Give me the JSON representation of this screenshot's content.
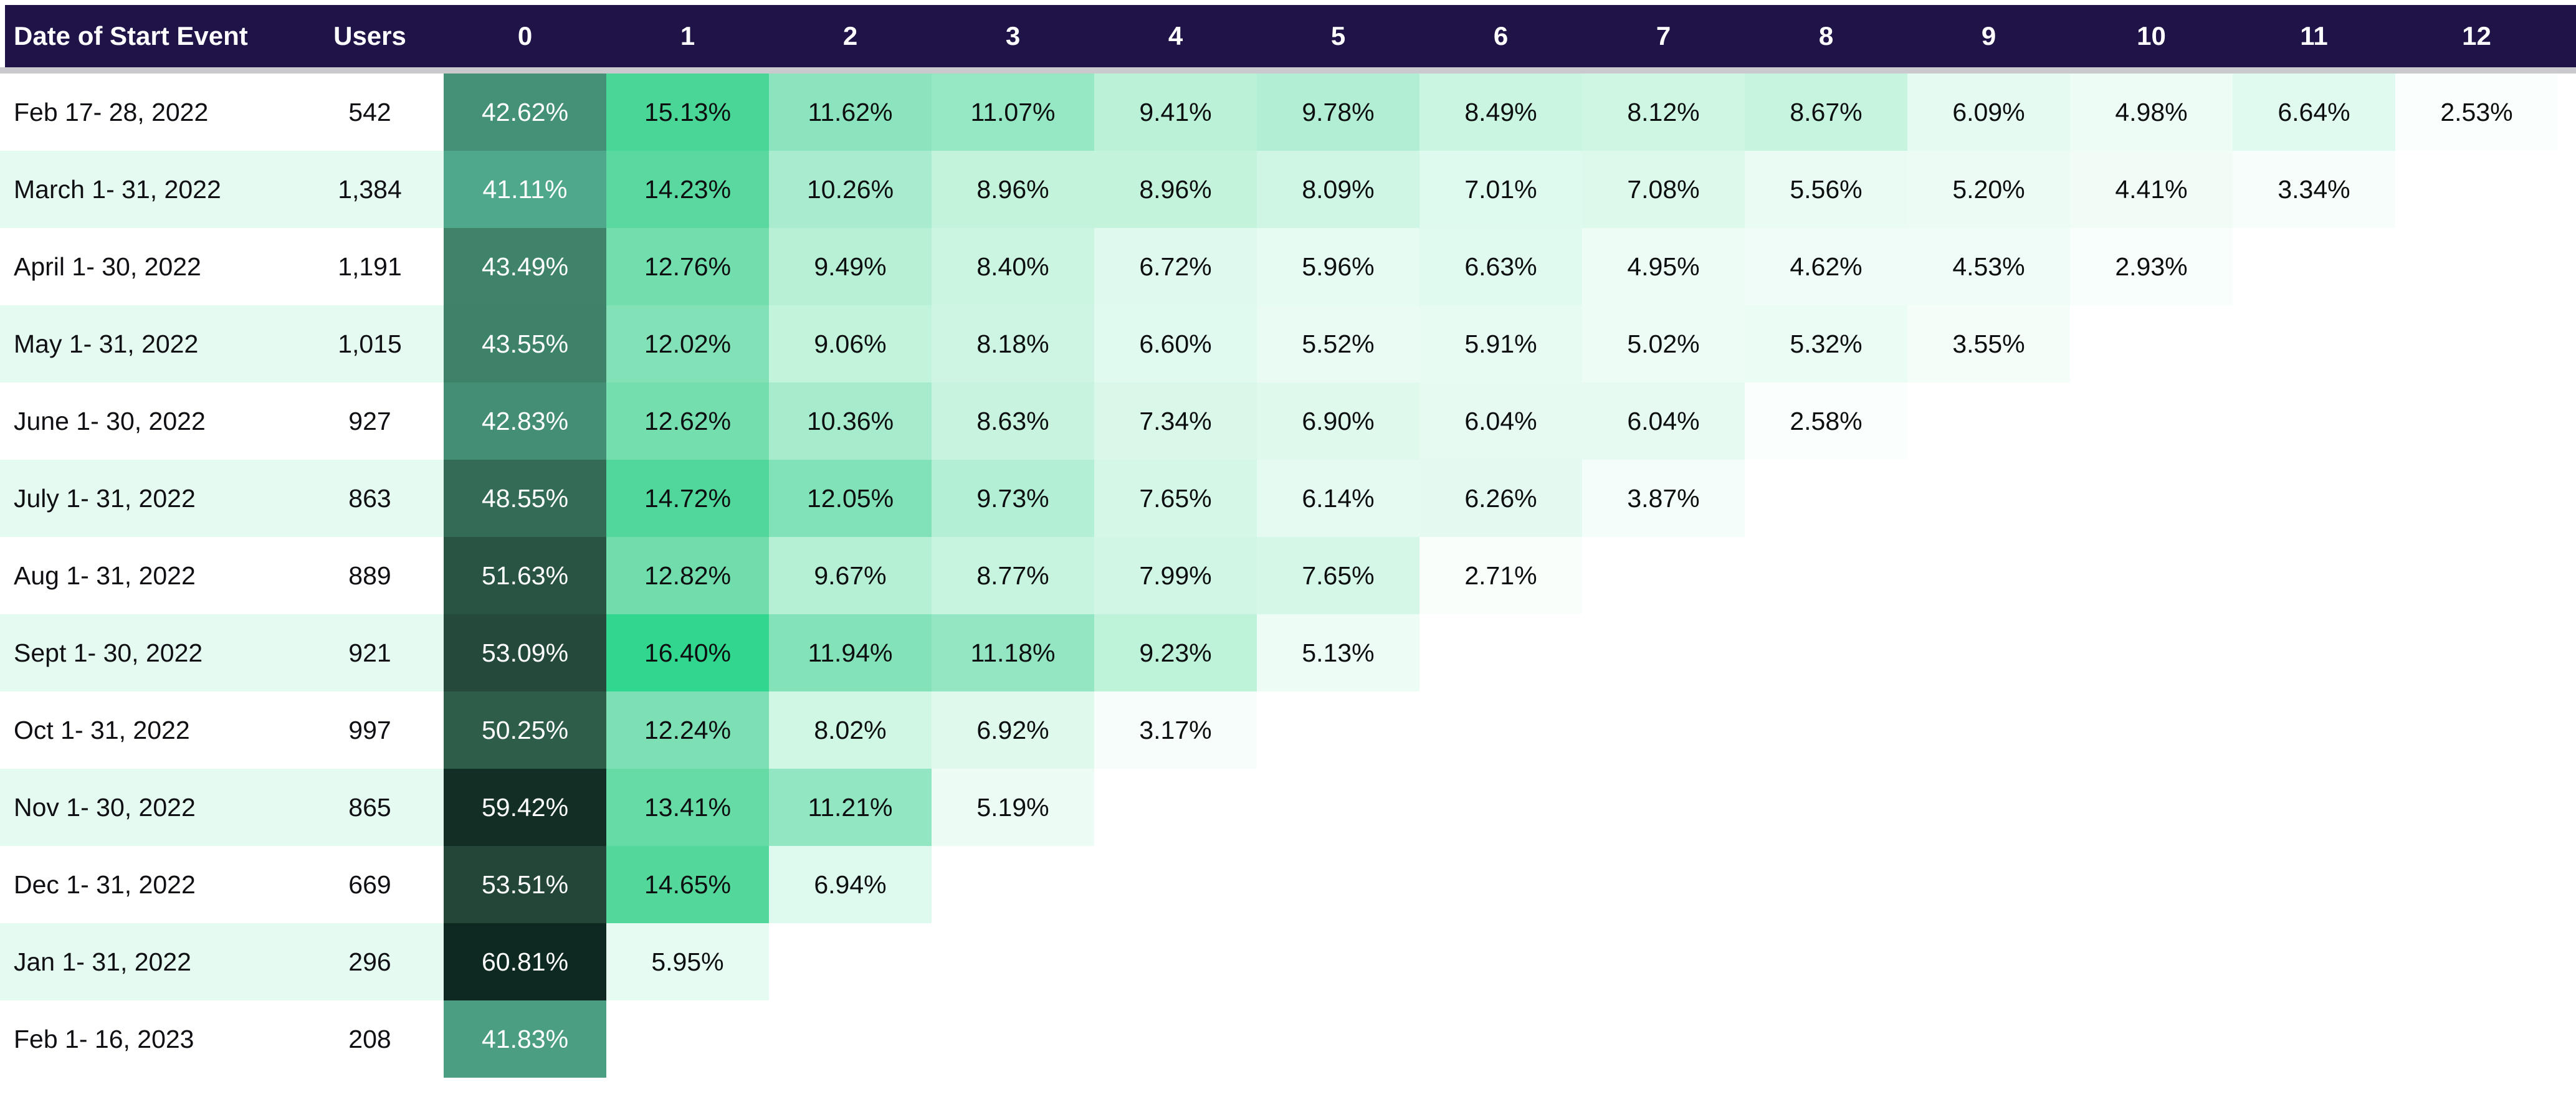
{
  "colors": {
    "header_bg": "#1f1347",
    "header_text": "#ffffff",
    "divider": "#c9c9ce",
    "stripe": "#e5fbf1",
    "label_text": "#101014",
    "cell_text_dark": "#0c0e10",
    "cell_text_light": "#ffffff",
    "empty_cell": "#ffffff"
  },
  "chart_data": {
    "type": "heatmap",
    "value_suffix": "%",
    "col_headers": [
      "Date of Start Event",
      "Users",
      "0",
      "1",
      "2",
      "3",
      "4",
      "5",
      "6",
      "7",
      "8",
      "9",
      "10",
      "11",
      "12"
    ],
    "rows": [
      {
        "cohort": "Feb 17- 28, 2022",
        "users": "542",
        "values": [
          42.62,
          15.13,
          11.62,
          11.07,
          9.41,
          9.78,
          8.49,
          8.12,
          8.67,
          6.09,
          4.98,
          6.64,
          2.53
        ]
      },
      {
        "cohort": "March 1- 31, 2022",
        "users": "1,384",
        "values": [
          41.11,
          14.23,
          10.26,
          8.96,
          8.96,
          8.09,
          7.01,
          7.08,
          5.56,
          5.2,
          4.41,
          3.34
        ]
      },
      {
        "cohort": "April 1- 30, 2022",
        "users": "1,191",
        "values": [
          43.49,
          12.76,
          9.49,
          8.4,
          6.72,
          5.96,
          6.63,
          4.95,
          4.62,
          4.53,
          2.93
        ]
      },
      {
        "cohort": "May 1- 31, 2022",
        "users": "1,015",
        "values": [
          43.55,
          12.02,
          9.06,
          8.18,
          6.6,
          5.52,
          5.91,
          5.02,
          5.32,
          3.55
        ]
      },
      {
        "cohort": "June 1- 30, 2022",
        "users": "927",
        "values": [
          42.83,
          12.62,
          10.36,
          8.63,
          7.34,
          6.9,
          6.04,
          6.04,
          2.58
        ]
      },
      {
        "cohort": "July 1- 31, 2022",
        "users": "863",
        "values": [
          48.55,
          14.72,
          12.05,
          9.73,
          7.65,
          6.14,
          6.26,
          3.87
        ]
      },
      {
        "cohort": "Aug 1- 31, 2022",
        "users": "889",
        "values": [
          51.63,
          12.82,
          9.67,
          8.77,
          7.99,
          7.65,
          2.71
        ]
      },
      {
        "cohort": "Sept 1- 30, 2022",
        "users": "921",
        "values": [
          53.09,
          16.4,
          11.94,
          11.18,
          9.23,
          5.13
        ]
      },
      {
        "cohort": "Oct 1- 31, 2022",
        "users": "997",
        "values": [
          50.25,
          12.24,
          8.02,
          6.92,
          3.17
        ]
      },
      {
        "cohort": "Nov 1- 30, 2022",
        "users": "865",
        "values": [
          59.42,
          13.41,
          11.21,
          5.19
        ]
      },
      {
        "cohort": "Dec 1- 31, 2022",
        "users": "669",
        "values": [
          53.51,
          14.65,
          6.94
        ]
      },
      {
        "cohort": "Jan 1- 31, 2022",
        "users": "296",
        "values": [
          60.81,
          5.95
        ]
      },
      {
        "cohort": "Feb 1- 16, 2023",
        "users": "208",
        "values": [
          41.83
        ]
      }
    ],
    "colorscale": {
      "white_text_threshold": 30,
      "stops": [
        [
          0,
          "#ffffff"
        ],
        [
          2.5,
          "#fafefc"
        ],
        [
          5,
          "#eefcf6"
        ],
        [
          7,
          "#def9ed"
        ],
        [
          9,
          "#c3f3dc"
        ],
        [
          11,
          "#98e7c5"
        ],
        [
          13,
          "#6ddcaa"
        ],
        [
          15,
          "#4dd698"
        ],
        [
          16.5,
          "#2fd78e"
        ],
        [
          41,
          "#50aa8c"
        ],
        [
          42,
          "#4a9b80"
        ],
        [
          43.6,
          "#3d8168"
        ],
        [
          48.6,
          "#346b56"
        ],
        [
          50.3,
          "#2e5d4a"
        ],
        [
          51.7,
          "#295243"
        ],
        [
          53.5,
          "#244639"
        ],
        [
          59.4,
          "#132e25"
        ],
        [
          61,
          "#0d2820"
        ]
      ]
    }
  }
}
